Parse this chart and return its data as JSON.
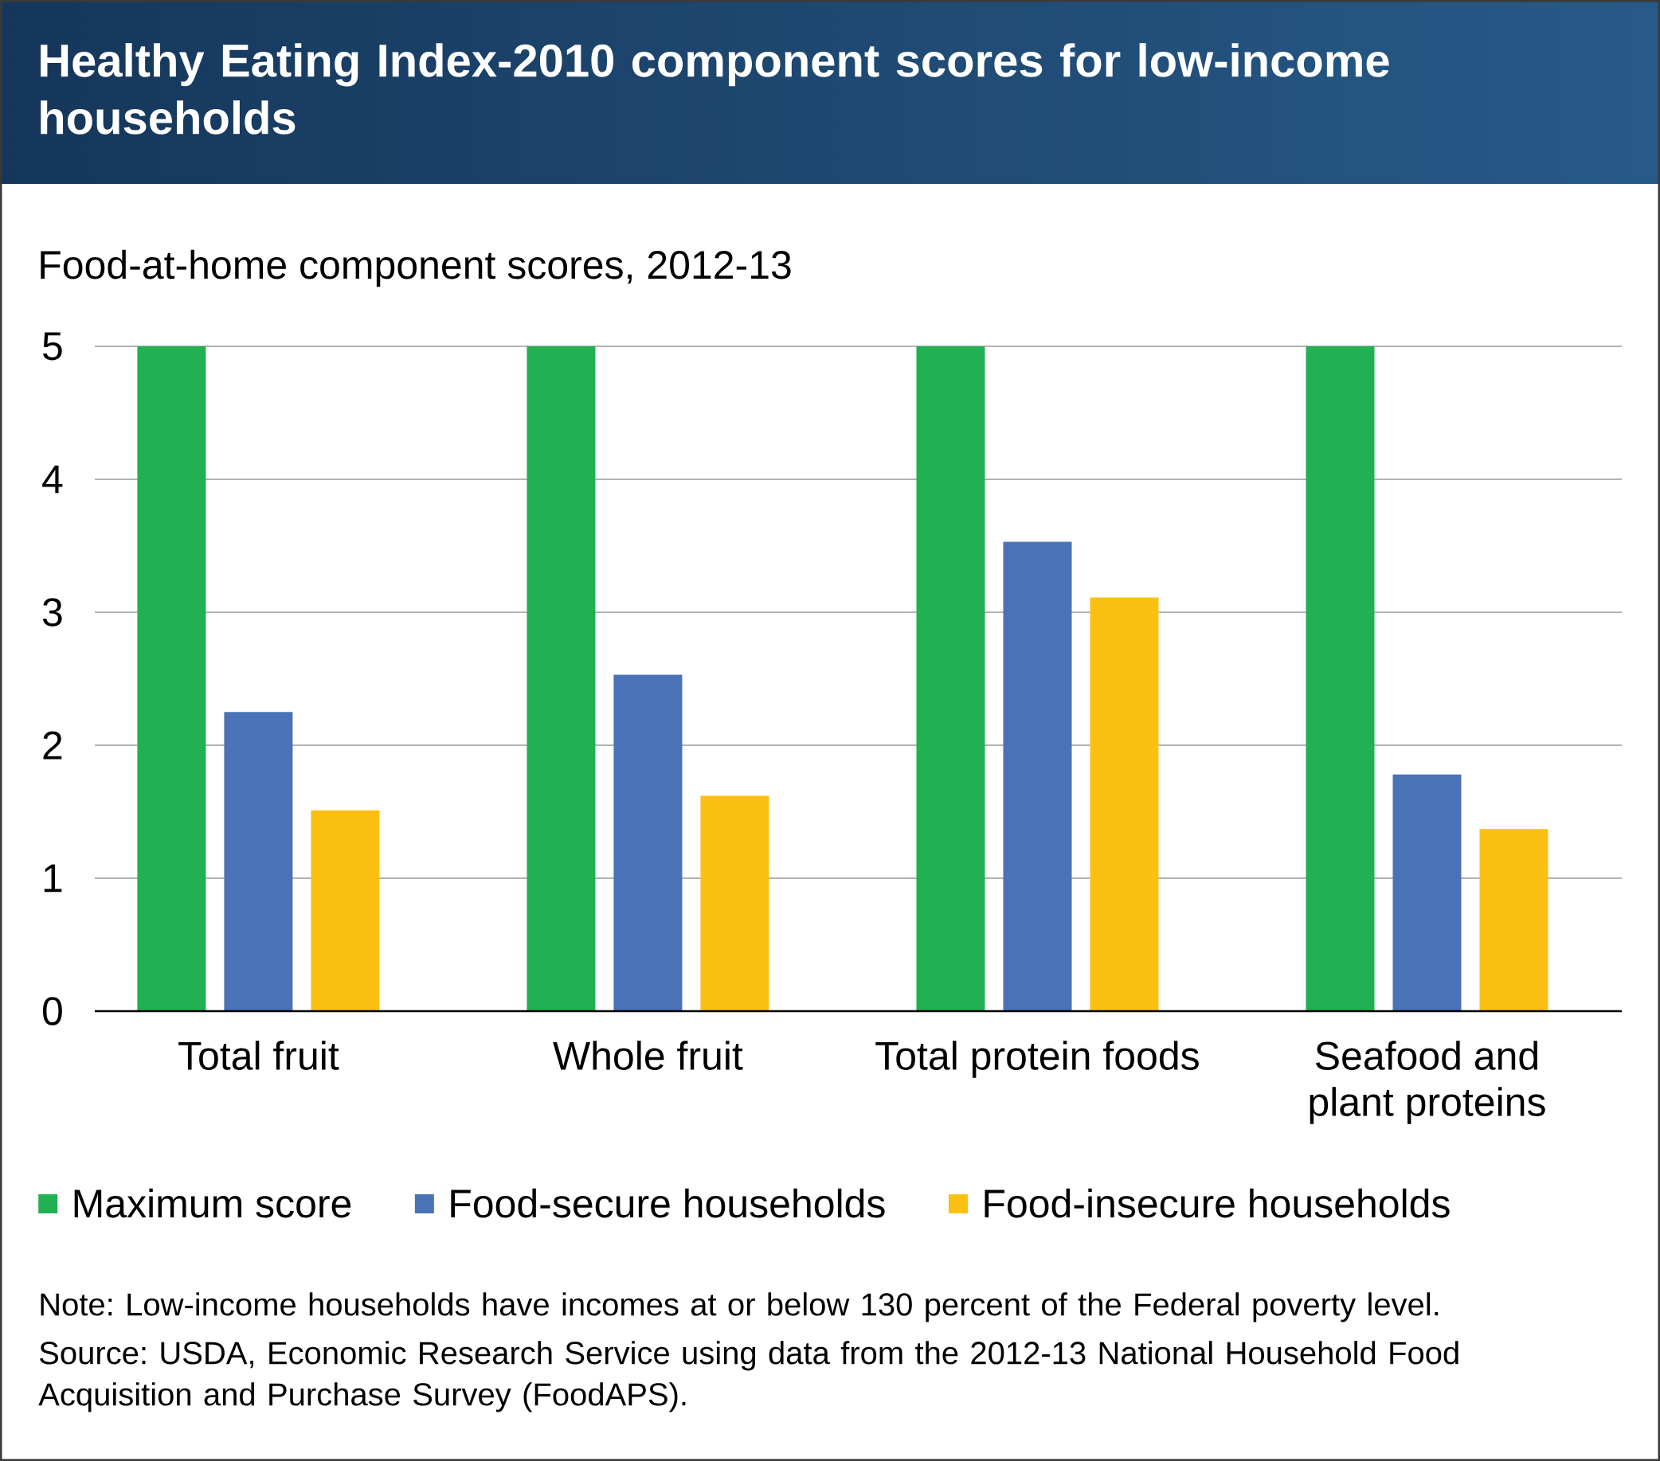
{
  "chart_data": {
    "type": "bar",
    "title": "Healthy Eating Index-2010 component scores for low-income households",
    "ylabel": "Food-at-home component scores, 2012-13",
    "categories": [
      "Total fruit",
      "Whole fruit",
      "Total protein foods",
      "Seafood and plant proteins"
    ],
    "series": [
      {
        "name": "Maximum score",
        "color": "#21b052",
        "values": [
          5,
          5,
          5,
          5
        ]
      },
      {
        "name": "Food-secure households",
        "color": "#4a72b7",
        "values": [
          2.25,
          2.53,
          3.53,
          1.78
        ]
      },
      {
        "name": "Food-insecure households",
        "color": "#fcc012",
        "values": [
          1.51,
          1.62,
          3.11,
          1.37
        ]
      }
    ],
    "ylim": [
      0,
      5
    ],
    "yticks": [
      0,
      1,
      2,
      3,
      4,
      5
    ],
    "grid": "y",
    "legend": "bottom",
    "annotations": [
      "Note: Low-income households have incomes at or below 130 percent of the Federal poverty level.",
      "Source: USDA, Economic Research Service using data from the 2012-13 National Household Food Acquisition and Purchase Survey (FoodAPS)."
    ]
  }
}
